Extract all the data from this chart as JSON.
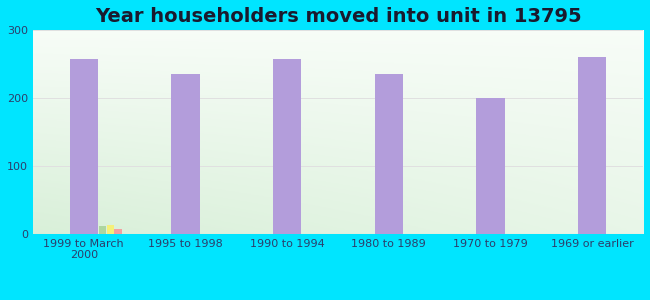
{
  "title": "Year householders moved into unit in 13795",
  "categories": [
    "1999 to March\n2000",
    "1995 to 1998",
    "1990 to 1994",
    "1980 to 1989",
    "1970 to 1979",
    "1969 or earlier"
  ],
  "white_non_hispanic": [
    258,
    235,
    258,
    235,
    200,
    260
  ],
  "asian": [
    12,
    0,
    0,
    0,
    0,
    0
  ],
  "two_or_more_races": [
    13,
    0,
    0,
    0,
    0,
    0
  ],
  "hispanic_or_latino": [
    8,
    0,
    0,
    0,
    0,
    0
  ],
  "bar_width": 0.28,
  "white_color": "#b39ddb",
  "asian_color": "#aed6a0",
  "two_color": "#f5f07a",
  "hispanic_color": "#f4a0a0",
  "ylim": [
    0,
    300
  ],
  "yticks": [
    0,
    100,
    200,
    300
  ],
  "bg_color": "#00e5ff",
  "plot_bg_top": "#f5fbf5",
  "plot_bg_bottom": "#dff0e8",
  "grid_color": "#e0e0e0",
  "title_fontsize": 14,
  "tick_fontsize": 8,
  "legend_fontsize": 8,
  "title_color": "#1a1a2e",
  "tick_color": "#2c3e6b",
  "small_bar_width": 0.07
}
